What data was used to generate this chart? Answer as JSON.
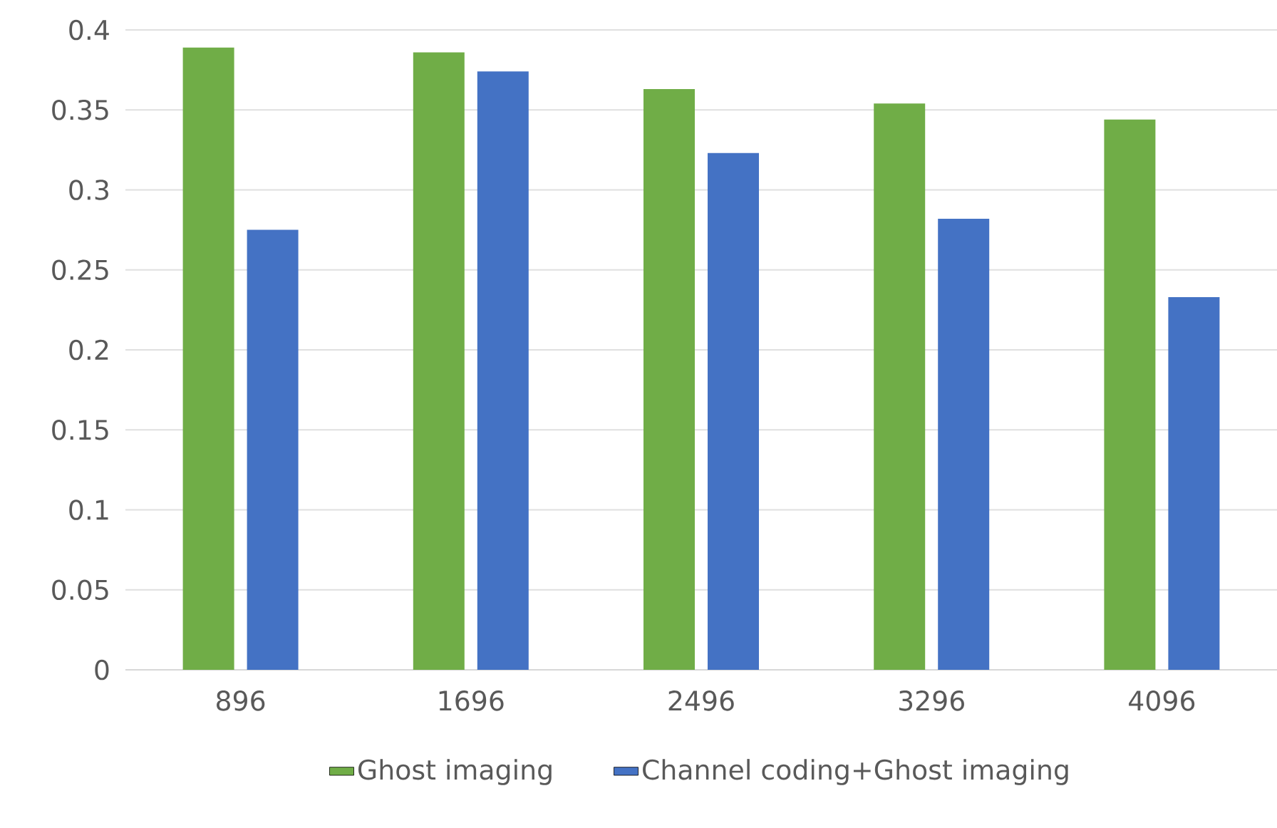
{
  "chart_data": {
    "type": "bar",
    "categories": [
      "896",
      "1696",
      "2496",
      "3296",
      "4096"
    ],
    "series": [
      {
        "name": "Ghost imaging",
        "color": "#70ad47",
        "values": [
          0.389,
          0.386,
          0.363,
          0.354,
          0.344
        ]
      },
      {
        "name": "Channel coding+Ghost imaging",
        "color": "#4472c4",
        "values": [
          0.275,
          0.374,
          0.323,
          0.282,
          0.233
        ]
      }
    ],
    "ylim": [
      0,
      0.4
    ],
    "yticks": [
      0,
      0.05,
      0.1,
      0.15,
      0.2,
      0.25,
      0.3,
      0.35,
      0.4
    ],
    "grid": "y",
    "legend": "bottom"
  }
}
